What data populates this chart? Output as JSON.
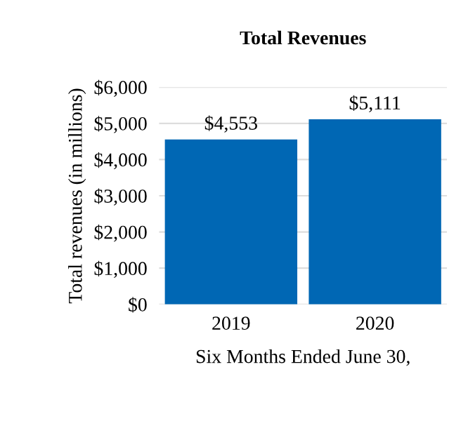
{
  "chart_data": {
    "type": "bar",
    "title": "Total Revenues",
    "xlabel": "Six Months Ended June 30,",
    "ylabel": "Total revenues (in millions)",
    "categories": [
      "2019",
      "2020"
    ],
    "values": [
      4553,
      5111
    ],
    "value_labels": [
      "$4,553",
      "$5,111"
    ],
    "color": "#0067b4",
    "ylim": [
      0,
      6000
    ],
    "yticks": [
      {
        "value": 0,
        "label": "$0"
      },
      {
        "value": 1000,
        "label": "$1,000"
      },
      {
        "value": 2000,
        "label": "$2,000"
      },
      {
        "value": 3000,
        "label": "$3,000"
      },
      {
        "value": 4000,
        "label": "$4,000"
      },
      {
        "value": 5000,
        "label": "$5,000"
      },
      {
        "value": 6000,
        "label": "$6,000"
      }
    ],
    "grid": "y"
  }
}
